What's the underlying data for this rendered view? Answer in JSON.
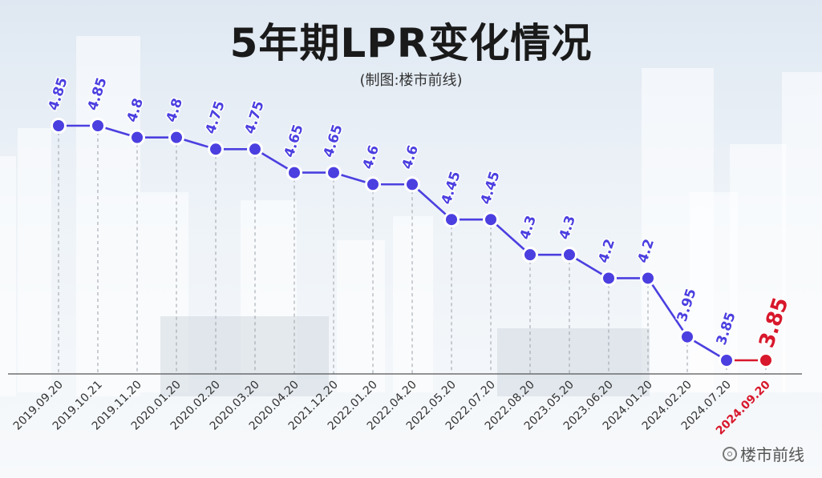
{
  "header": {
    "title": "5年期LPR变化情况",
    "subtitle": "(制图:楼市前线)"
  },
  "watermark": {
    "text": "楼市前线",
    "icon": "at-icon"
  },
  "colors": {
    "series": "#4b3fe0",
    "highlight": "#d8182c",
    "label": "#4b3fe0",
    "axis": "#555555",
    "guide": "#9aa0a8"
  },
  "chart_data": {
    "type": "line",
    "title": "5年期LPR变化情况",
    "xlabel": "",
    "ylabel": "",
    "ylim": [
      3.7,
      5.0
    ],
    "grid": false,
    "legend": "none",
    "categories": [
      "2019.09.20",
      "2019.10.21",
      "2019.11.20",
      "2020.01.20",
      "2020.02.20",
      "2020.03.20",
      "2020.04.20",
      "2021.12.20",
      "2022.01.20",
      "2022.04.20",
      "2022.05.20",
      "2022.07.20",
      "2022.08.20",
      "2023.05.20",
      "2023.06.20",
      "2024.01.20",
      "2024.02.20",
      "2024.07.20",
      "2024.09.20"
    ],
    "series": [
      {
        "values": [
          4.85,
          4.85,
          4.8,
          4.8,
          4.75,
          4.75,
          4.65,
          4.65,
          4.6,
          4.6,
          4.45,
          4.45,
          4.3,
          4.3,
          4.2,
          4.2,
          3.95,
          3.85,
          3.85
        ],
        "labels": [
          "4.85",
          "4.85",
          "4.8",
          "4.8",
          "4.75",
          "4.75",
          "4.65",
          "4.65",
          "4.6",
          "4.6",
          "4.45",
          "4.45",
          "4.3",
          "4.3",
          "4.2",
          "4.2",
          "3.95",
          "3.85",
          "3.85"
        ]
      }
    ],
    "highlight_index": 18
  }
}
